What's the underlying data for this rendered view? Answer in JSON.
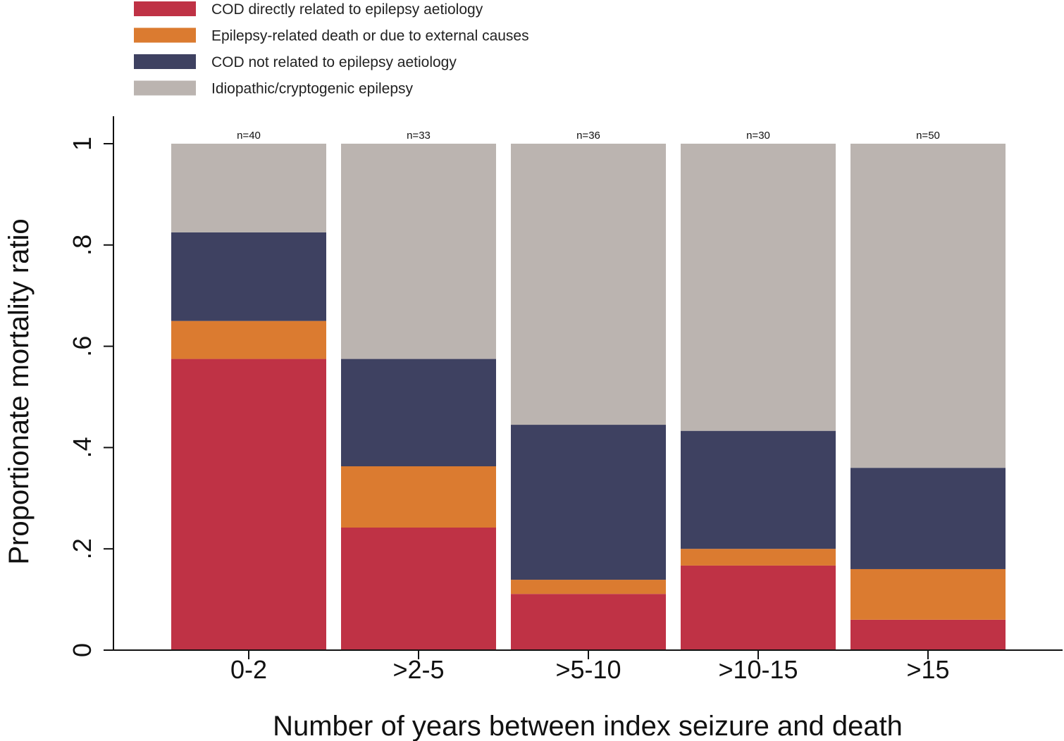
{
  "chart_data": {
    "type": "bar",
    "stacked": true,
    "categories": [
      "0-2",
      ">2-5",
      ">5-10",
      ">10-15",
      ">15"
    ],
    "n_labels": [
      "n=40",
      "n=33",
      "n=36",
      "n=30",
      "n=50"
    ],
    "series": [
      {
        "name": "COD directly related to epilepsy aetiology",
        "color": "#bf3245",
        "values": [
          0.575,
          0.242,
          0.111,
          0.167,
          0.06
        ]
      },
      {
        "name": "Epilepsy-related death or due to external causes",
        "color": "#db7b30",
        "values": [
          0.075,
          0.121,
          0.028,
          0.033,
          0.1
        ]
      },
      {
        "name": "COD not related to epilepsy aetiology",
        "color": "#3e4161",
        "values": [
          0.175,
          0.212,
          0.306,
          0.233,
          0.2
        ]
      },
      {
        "name": "Idiopathic/cryptogenic epilepsy",
        "color": "#bbb4b0",
        "values": [
          0.175,
          0.425,
          0.555,
          0.567,
          0.64
        ]
      }
    ],
    "xlabel": "Number of years between index seizure and death",
    "ylabel": "Proportionate mortality ratio",
    "ylim": [
      0,
      1
    ],
    "yticks": [
      0,
      0.2,
      0.4,
      0.6,
      0.8,
      1
    ],
    "ytick_labels": [
      "0",
      ".2",
      ".4",
      ".6",
      ".8",
      "1"
    ],
    "legend_position": "top-left",
    "grid": false
  }
}
